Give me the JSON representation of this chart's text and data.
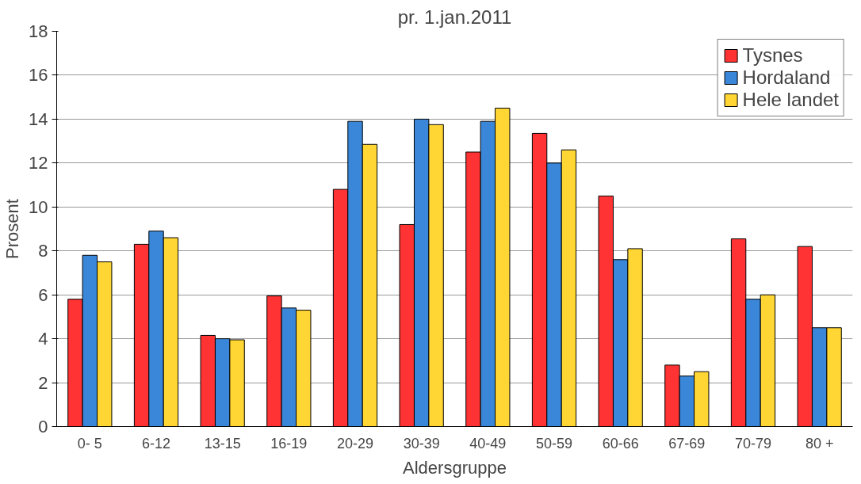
{
  "chart_data": {
    "type": "bar",
    "title": "pr. 1.jan.2011",
    "xlabel": "Aldersgruppe",
    "ylabel": "Prosent",
    "categories": [
      "0- 5",
      "6-12",
      "13-15",
      "16-19",
      "20-29",
      "30-39",
      "40-49",
      "50-59",
      "60-66",
      "67-69",
      "70-79",
      "80 +"
    ],
    "series": [
      {
        "name": "Tysnes",
        "color": "#ff3333",
        "values": [
          5.8,
          8.3,
          4.15,
          5.95,
          10.8,
          9.2,
          12.5,
          13.35,
          10.5,
          2.8,
          8.55,
          8.2
        ]
      },
      {
        "name": "Hordaland",
        "color": "#3a87d9",
        "values": [
          7.8,
          8.9,
          4.0,
          5.4,
          13.9,
          14.0,
          13.9,
          12.0,
          7.6,
          2.3,
          5.8,
          4.5
        ]
      },
      {
        "name": "Hele landet",
        "color": "#ffd633",
        "values": [
          7.5,
          8.6,
          3.95,
          5.3,
          12.85,
          13.75,
          14.5,
          12.6,
          8.1,
          2.5,
          6.0,
          4.5
        ]
      }
    ],
    "ylim": [
      0,
      18
    ],
    "yticks": [
      0,
      2,
      4,
      6,
      8,
      10,
      12,
      14,
      16,
      18
    ],
    "grid": "y",
    "legend": "top right"
  }
}
